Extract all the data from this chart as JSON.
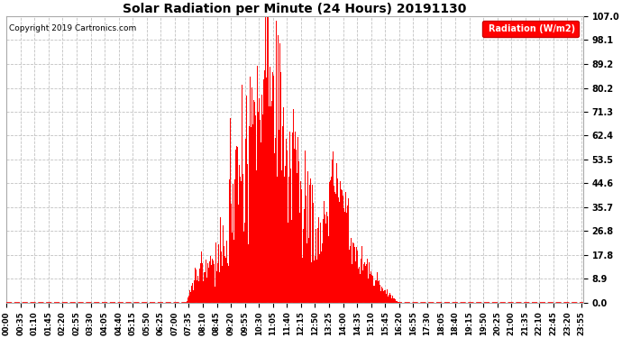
{
  "title": "Solar Radiation per Minute (24 Hours) 20191130",
  "copyright": "Copyright 2019 Cartronics.com",
  "ylabel": "Radiation (W/m2)",
  "yticks": [
    0.0,
    8.9,
    17.8,
    26.8,
    35.7,
    44.6,
    53.5,
    62.4,
    71.3,
    80.2,
    89.2,
    98.1,
    107.0
  ],
  "ymax": 107.0,
  "bg_color": "#ffffff",
  "plot_bg_color": "#ffffff",
  "bar_color": "#ff0000",
  "grid_color": "#bbbbbb",
  "dashed_line_color": "#ff0000",
  "legend_bg": "#ff0000",
  "legend_text_color": "#ffffff",
  "xtick_labels": [
    "00:00",
    "00:35",
    "01:10",
    "01:45",
    "02:20",
    "02:55",
    "03:30",
    "04:05",
    "04:40",
    "05:15",
    "05:50",
    "06:25",
    "07:00",
    "07:35",
    "08:10",
    "08:45",
    "09:20",
    "09:55",
    "10:30",
    "11:05",
    "11:40",
    "12:15",
    "12:50",
    "13:25",
    "14:00",
    "14:35",
    "15:10",
    "15:45",
    "16:20",
    "16:55",
    "17:30",
    "18:05",
    "18:40",
    "19:15",
    "19:50",
    "20:25",
    "21:00",
    "21:35",
    "22:10",
    "22:45",
    "23:20",
    "23:55"
  ],
  "num_minutes": 1440
}
